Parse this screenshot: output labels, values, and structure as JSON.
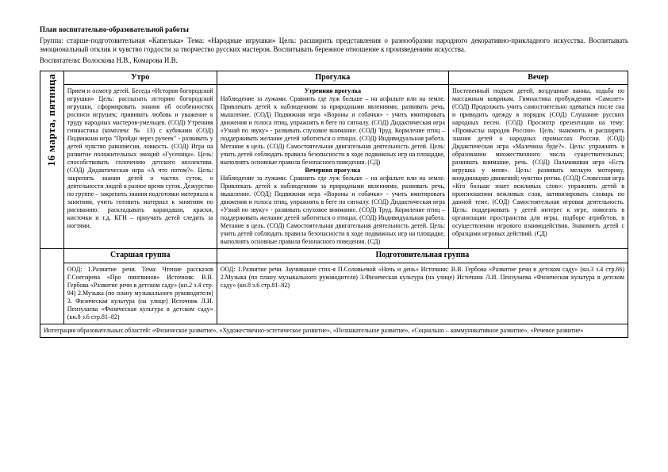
{
  "header": {
    "title": "План воспитательно-образовательной работы",
    "line1": "Группа: старше-подготовительная «Капелька»  Тема: «Народные игрушки» Цель: расширить представления о разнообразии народного декоративно-прикладного искусства. Воспитывать эмоциональный отклик и чувство гордости за творчество русских мастеров. Воспитывать бережное отношение к произведениям искусства.",
    "line2": "Воспитатели: Волоскова Н.В., Комарова И.В."
  },
  "date": "16 марта, пятница",
  "cols": {
    "c1": "Утро",
    "c2": "Прогулка",
    "c3": "Вечер"
  },
  "utro": "Прием и осмотр детей.\nБеседа «История богородской игрушки» Цель: рассказать историю богородской игрушки, сформировать знания об особенностях росписи игрушек; прививать любовь и уважение к труду народных мастеров-умельцев. (СОД)\nУтренняя гимнастика (комплекс № 13) с кубиками (СОД)\nПодвижная игра \"Пройди через ручеек\" - развивать у детей чувство равновесия, ловкость. (СОД)\nИгра на развитие положительных эмоций «Гусеница».\nЦель: способствовать сплочению детского коллектива. (СОД)\nДидактическая игра «А что потом?». Цель: закрепить знания детей о частях суток, о деятельности людей в разное время суток.\nДежурство по группе – закрепить знания подготовки материала к занятиям, учить готовить материал к занятиям по рисованию: раскладывать карандаши, краски, кисточки и т.д.\nКГН – приучать детей следить за ногтями.",
  "prog_sub1": "Утренняя прогулка",
  "prog1": "Наблюдение за лужами. Сравнить где луж больше – на асфальте или на земле. Привлекать детей к наблюдениям за природными явлениями, развивать речь, мышление. (СОД)\nПодвижная игра «Вороны и собачки» - учить имитировать движения и голоса птиц, упражнять в беге по сигналу. (СОД)\nДидактическая игра «Узнай по звуку» - развивать слуховое внимание. (СОД)\nТруд. Кормление птиц – поддерживать желание детей заботиться о птицах. (СОД)\nИндивидуальная работа. Метание в цель. (СОД)\nСамостоятельная двигательная деятельность детей. Цель: учить детей соблюдать правила безопасности в ходе подвижных игр на площадке, выполнять основные правила безопасного поведения. (СД)",
  "prog_sub2": "Вечерняя прогулка",
  "prog2": "Наблюдение за лужами. Сравнить где луж больше – на асфальте или на земле. Привлекать детей к наблюдениям за природными явлениями, развивать речь, мышление. (СОД)\nПодвижная игра «Вороны и собачки» - учить имитировать движения и голоса птиц, упражнять в беге по сигналу. (СОД)\nДидактическая игра «Узнай по звуку» - развивать слуховое внимание. (СОД)\nТруд. Кормление птиц – поддерживать желание детей заботиться о птицах. (СОД)\nИндивидуальная работа. Метание в цель. (СОД)\nСамостоятельная двигательная деятельность детей. Цель: учить детей соблюдать правила безопасности в ходе подвижных игр на площадке, выполнять основные правила безопасного поведения. (СД)",
  "vecher": "Постепенный подъем детей, воздушные ванны, ходьба по массажным коврикам.\nГимнастика пробуждения «Самолет» (СОД)\nПродолжать учить самостоятельно одеваться после сна и приводить одежду в порядок (СОД)\nСлушание русских народных песен. (СОД)\nПросмотр презентации на тему: «Промыслы народов России». Цель: знакомить и расширять знания детей о народных промыслах России. (СОД)\nДидактическая игра «Малечина буде?». Цель: упражнять в образовании множественного числа существительных; развивать внимание, речь. (СОД)\nПальчиковая игра «Есть игрушка у меня». Цель: развивать мелкую моторику, координацию движений; чувство ритма. (СОД)\nСловесная игра «Кто больше знает вежливых слов»: упражнять детей в произношении вежливых слов, активизировать словарь по данной теме. (СОД)\nСамостоятельная игровая деятельность. Цель: поддерживать у детей интерес к игре, помогать в организации пространства для игры, подборе атрибутов, в осуществлении игрового взаимодействия. Знакомить детей с образцами игровых действий. (СД)",
  "foot": {
    "h1": "Старшая группа",
    "h2": "Подготовительная группа",
    "t1": "ООД: 1.Развитие речи. Тема: Чтение рассказов Г.Снегирева «Про пингвинов» Источник: В.В. Гербова «Развитие речи в детском саду» (кн.2 з.4 стр. 94)\n2.Музыка (по плану музыкального руководителя)\n3. Физическая культура (на улице) Источник Л.И. Пензулаева «Физическая культура в детском саду» (кн.8 з.6 стр.81–82)",
    "t2": "ООД: 1.Развитие речи. Заучивание стих-я П.Соловьевой «Ночь и день» Источник: В.В. Гербова «Развитие речи в детском саду» (кн.3 з.4 стр.66)\n2.Музыка (по плану музыкального руководителя)\n3.Физическая культура (на улице) Источник Л.И. Пензулаева «Физическая культура в детском саду» (кн.8 з.6 стр.81–82)"
  },
  "integr": "Интеграция образовательных областей: «Физическое развитие», «Художественно-эстетическое развитие», «Познавательное развитие», «Социально – коммуникативное развитие», «Речевое развитие»"
}
